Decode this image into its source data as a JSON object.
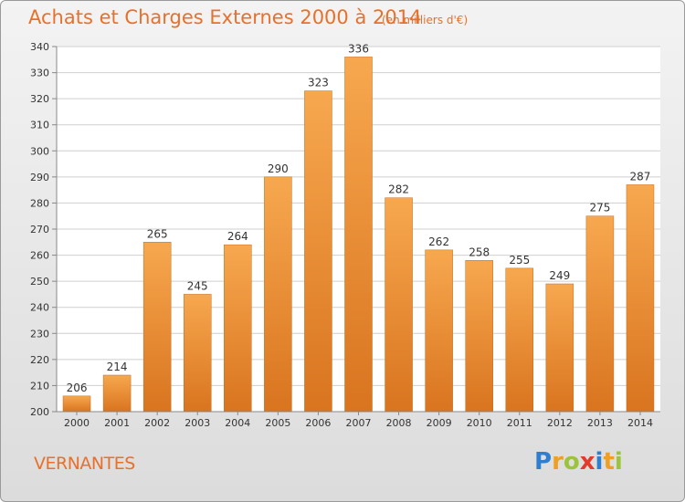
{
  "header": {
    "title": "Achats et Charges Externes 2000 à 2014",
    "subtitle": "(en milliers d'€)"
  },
  "footer": {
    "location": "VERNANTES",
    "logo_text": "Proxiti",
    "logo_letters": [
      {
        "ch": "P",
        "color": "#2e7fd0"
      },
      {
        "ch": "r",
        "color": "#f0a021"
      },
      {
        "ch": "o",
        "color": "#9bc43a"
      },
      {
        "ch": "x",
        "color": "#e23b2e"
      },
      {
        "ch": "i",
        "color": "#2e7fd0"
      },
      {
        "ch": "t",
        "color": "#f0a021"
      },
      {
        "ch": "i",
        "color": "#9bc43a"
      }
    ]
  },
  "colors": {
    "bar_light": "#f7a84f",
    "bar_dark": "#d9741f",
    "grid": "#cfcfcf",
    "text": "#333333",
    "accent": "#e8702a"
  },
  "chart_data": {
    "type": "bar",
    "categories": [
      "2000",
      "2001",
      "2002",
      "2003",
      "2004",
      "2005",
      "2006",
      "2007",
      "2008",
      "2009",
      "2010",
      "2011",
      "2012",
      "2013",
      "2014"
    ],
    "values": [
      206,
      214,
      265,
      245,
      264,
      290,
      323,
      336,
      282,
      262,
      258,
      255,
      249,
      275,
      287
    ],
    "ylim": [
      200,
      340
    ],
    "yticks": [
      200,
      210,
      220,
      230,
      240,
      250,
      260,
      270,
      280,
      290,
      300,
      310,
      320,
      330,
      340
    ],
    "grid": true
  }
}
